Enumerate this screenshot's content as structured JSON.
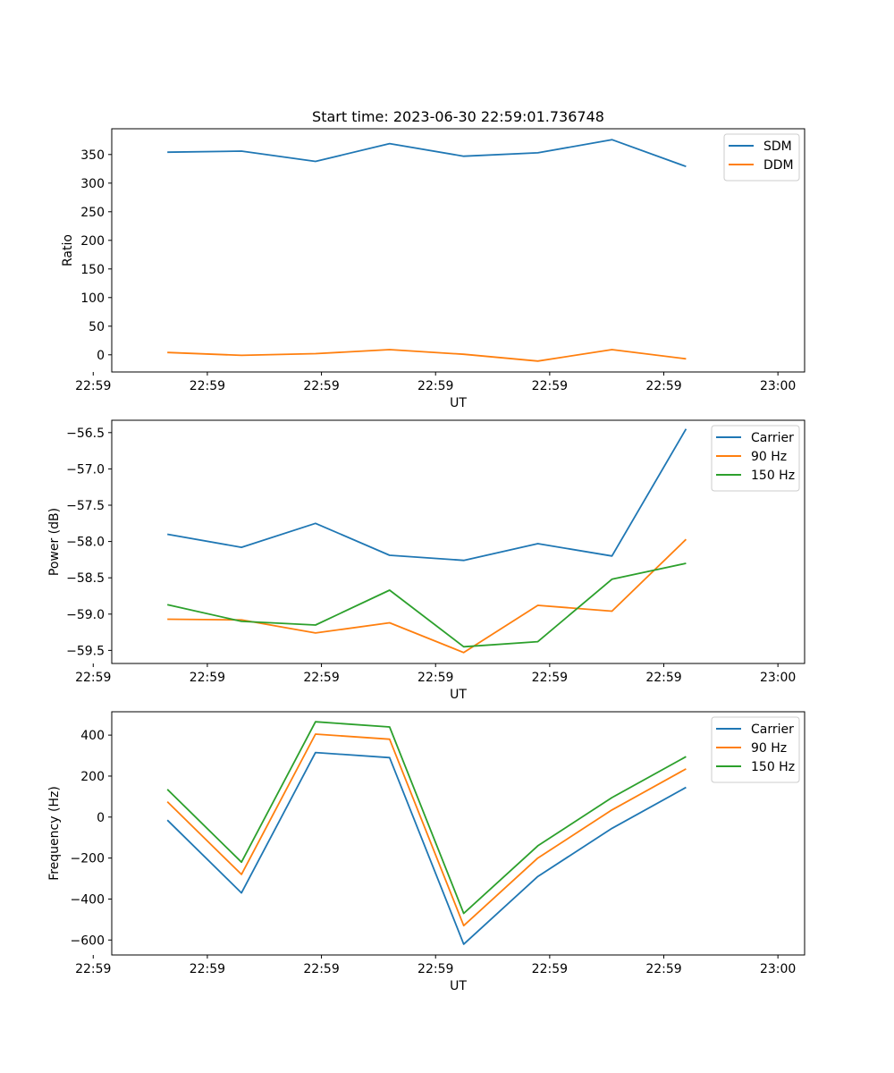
{
  "title": "Start time: 2023-06-30 22:59:01.736748",
  "chart_data": [
    {
      "type": "line",
      "xlabel": "UT",
      "ylabel": "Ratio",
      "x": [
        1,
        2,
        3,
        4,
        5,
        6,
        7,
        8
      ],
      "xlim": [
        0.25,
        9.6
      ],
      "xticks": [
        {
          "value": 0,
          "label": "22:59"
        },
        {
          "value": 1.54,
          "label": "22:59"
        },
        {
          "value": 3.08,
          "label": "22:59"
        },
        {
          "value": 4.62,
          "label": "22:59"
        },
        {
          "value": 6.16,
          "label": "22:59"
        },
        {
          "value": 7.7,
          "label": "22:59"
        },
        {
          "value": 9.24,
          "label": "23:00"
        }
      ],
      "ylim": [
        -30,
        395
      ],
      "yticks": [
        0,
        50,
        100,
        150,
        200,
        250,
        300,
        350
      ],
      "legend_position": "top-right",
      "series": [
        {
          "name": "SDM",
          "color": "#1f77b4",
          "values": [
            354,
            356,
            338,
            369,
            347,
            353,
            376,
            329
          ]
        },
        {
          "name": "DDM",
          "color": "#ff7f0e",
          "values": [
            4,
            -1,
            2,
            9,
            1,
            -11,
            9,
            -7
          ]
        }
      ]
    },
    {
      "type": "line",
      "xlabel": "UT",
      "ylabel": "Power (dB)",
      "x": [
        1,
        2,
        3,
        4,
        5,
        6,
        7,
        8
      ],
      "xlim": [
        0.25,
        9.6
      ],
      "xticks": [
        {
          "value": 0,
          "label": "22:59"
        },
        {
          "value": 1.54,
          "label": "22:59"
        },
        {
          "value": 3.08,
          "label": "22:59"
        },
        {
          "value": 4.62,
          "label": "22:59"
        },
        {
          "value": 6.16,
          "label": "22:59"
        },
        {
          "value": 7.7,
          "label": "22:59"
        },
        {
          "value": 9.24,
          "label": "23:00"
        }
      ],
      "ylim": [
        -59.68,
        -56.33
      ],
      "yticks": [
        -59.5,
        -59.0,
        -58.5,
        -58.0,
        -57.5,
        -57.0,
        -56.5
      ],
      "ytick_labels": [
        "−59.5",
        "−59.0",
        "−58.5",
        "−58.0",
        "−57.5",
        "−57.0",
        "−56.5"
      ],
      "legend_position": "top-right",
      "series": [
        {
          "name": "Carrier",
          "color": "#1f77b4",
          "values": [
            -57.9,
            -58.08,
            -57.75,
            -58.19,
            -58.26,
            -58.03,
            -58.2,
            -56.45
          ]
        },
        {
          "name": "90 Hz",
          "color": "#ff7f0e",
          "values": [
            -59.07,
            -59.08,
            -59.26,
            -59.12,
            -59.53,
            -58.88,
            -58.96,
            -57.97
          ]
        },
        {
          "name": "150 Hz",
          "color": "#2ca02c",
          "values": [
            -58.87,
            -59.1,
            -59.15,
            -58.67,
            -59.45,
            -59.38,
            -58.52,
            -58.3
          ]
        }
      ]
    },
    {
      "type": "line",
      "xlabel": "UT",
      "ylabel": "Frequency (Hz)",
      "x": [
        1,
        2,
        3,
        4,
        5,
        6,
        7,
        8
      ],
      "xlim": [
        0.25,
        9.6
      ],
      "xticks": [
        {
          "value": 0,
          "label": "22:59"
        },
        {
          "value": 1.54,
          "label": "22:59"
        },
        {
          "value": 3.08,
          "label": "22:59"
        },
        {
          "value": 4.62,
          "label": "22:59"
        },
        {
          "value": 6.16,
          "label": "22:59"
        },
        {
          "value": 7.7,
          "label": "22:59"
        },
        {
          "value": 9.24,
          "label": "23:00"
        }
      ],
      "ylim": [
        -673,
        514
      ],
      "yticks": [
        -600,
        -400,
        -200,
        0,
        200,
        400
      ],
      "ytick_labels": [
        "−600",
        "−400",
        "−200",
        "0",
        "200",
        "400"
      ],
      "legend_position": "top-right",
      "series": [
        {
          "name": "Carrier",
          "color": "#1f77b4",
          "values": [
            -15,
            -370,
            315,
            290,
            -620,
            -290,
            -55,
            145
          ]
        },
        {
          "name": "90 Hz",
          "color": "#ff7f0e",
          "values": [
            75,
            -280,
            405,
            380,
            -530,
            -200,
            35,
            235
          ]
        },
        {
          "name": "150 Hz",
          "color": "#2ca02c",
          "values": [
            135,
            -220,
            465,
            440,
            -470,
            -140,
            95,
            295
          ]
        }
      ]
    }
  ]
}
